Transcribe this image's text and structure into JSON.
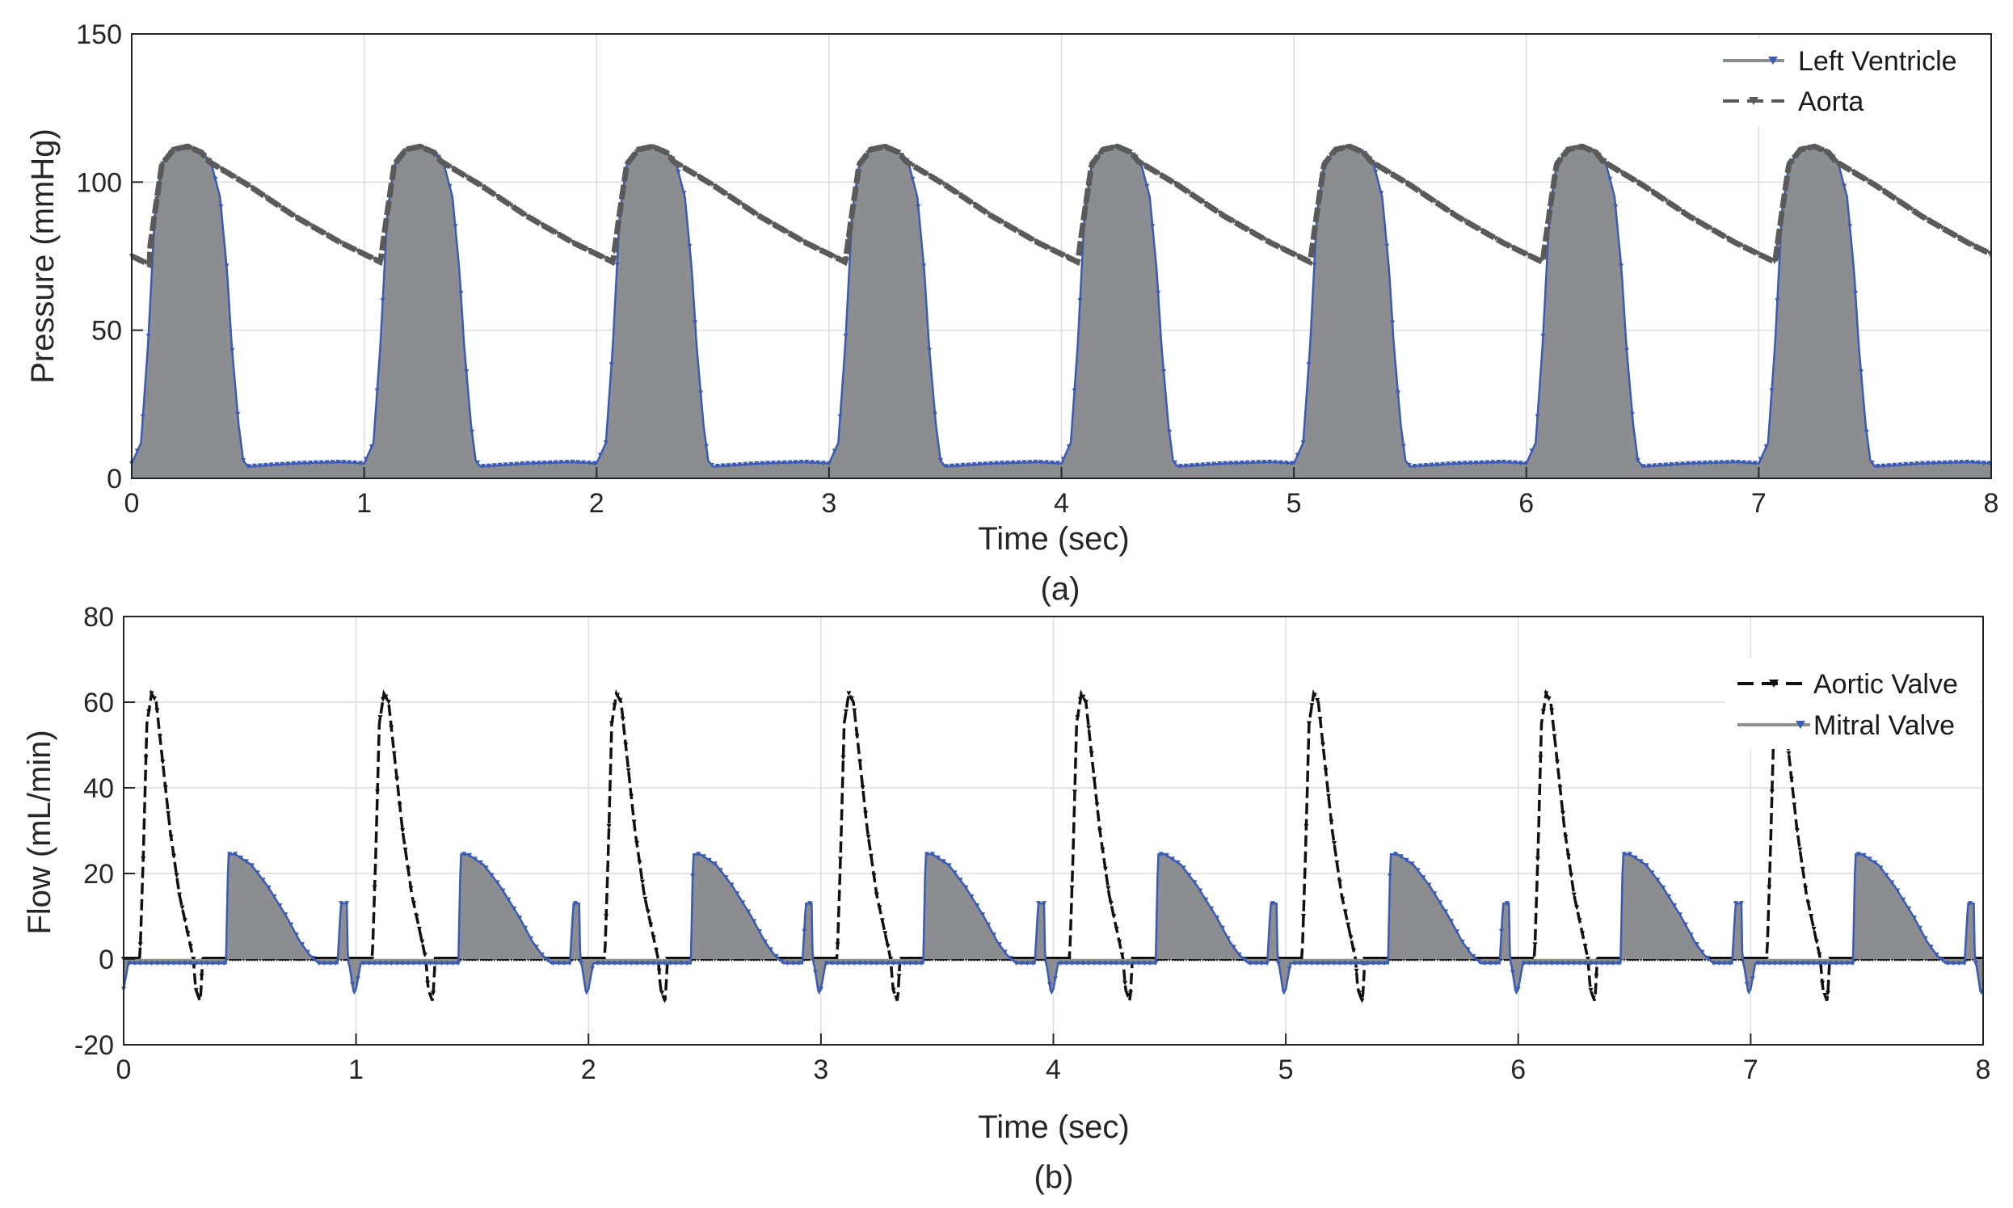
{
  "chart_data": [
    {
      "panel": "a",
      "type": "line",
      "caption": "(a)",
      "xlabel": "Time (sec)",
      "ylabel": "Pressure (mmHg)",
      "xlim": [
        0,
        8
      ],
      "ylim": [
        0,
        150
      ],
      "xticks": [
        "0",
        "1",
        "2",
        "3",
        "4",
        "5",
        "6",
        "7",
        "8"
      ],
      "yticks": [
        "0",
        "50",
        "100",
        "150"
      ],
      "grid": true,
      "legend_position": "top-right",
      "period_sec": 1.0,
      "series": [
        {
          "name": "Left Ventricle",
          "style": "filled-gray-solid-with-blue-markers",
          "color": "#8c8d91",
          "marker_color": "#3a5bb5",
          "cycle_points": [
            [
              0.0,
              5
            ],
            [
              0.04,
              12
            ],
            [
              0.07,
              45
            ],
            [
              0.1,
              90
            ],
            [
              0.13,
              106
            ],
            [
              0.18,
              111
            ],
            [
              0.24,
              112
            ],
            [
              0.3,
              110
            ],
            [
              0.34,
              107
            ],
            [
              0.38,
              95
            ],
            [
              0.41,
              70
            ],
            [
              0.43,
              45
            ],
            [
              0.46,
              18
            ],
            [
              0.48,
              6
            ],
            [
              0.5,
              4
            ],
            [
              0.7,
              5
            ],
            [
              0.9,
              5.5
            ],
            [
              1.0,
              5
            ]
          ]
        },
        {
          "name": "Aorta",
          "style": "dashed-dark-gray",
          "color": "#5a5a5a",
          "first_cycle_points": [
            [
              0.0,
              75
            ],
            [
              0.08,
              72
            ]
          ],
          "cycle_points": [
            [
              0.07,
              73
            ],
            [
              0.1,
              90
            ],
            [
              0.13,
              106
            ],
            [
              0.18,
              111
            ],
            [
              0.24,
              112
            ],
            [
              0.3,
              110
            ],
            [
              0.33,
              107
            ],
            [
              0.5,
              99
            ],
            [
              0.7,
              88.5
            ],
            [
              0.9,
              79.5
            ],
            [
              1.07,
              73
            ]
          ]
        }
      ]
    },
    {
      "panel": "b",
      "type": "line",
      "caption": "(b)",
      "xlabel": "Time (sec)",
      "ylabel": "Flow (mL/min)",
      "xlim": [
        0,
        8
      ],
      "ylim": [
        -20,
        80
      ],
      "xticks": [
        "0",
        "1",
        "2",
        "3",
        "4",
        "5",
        "6",
        "7",
        "8"
      ],
      "yticks": [
        "-20",
        "0",
        "20",
        "40",
        "60",
        "80"
      ],
      "grid": true,
      "legend_position": "right",
      "period_sec": 1.0,
      "series": [
        {
          "name": "Aortic Valve",
          "style": "dashed-black",
          "color": "#111111",
          "cycle_points": [
            [
              0.0,
              0
            ],
            [
              0.07,
              0
            ],
            [
              0.085,
              25
            ],
            [
              0.1,
              55
            ],
            [
              0.12,
              62
            ],
            [
              0.14,
              60
            ],
            [
              0.17,
              45
            ],
            [
              0.2,
              30
            ],
            [
              0.24,
              15
            ],
            [
              0.28,
              5
            ],
            [
              0.3,
              0
            ],
            [
              0.31,
              -7
            ],
            [
              0.33,
              -10
            ],
            [
              0.34,
              0
            ],
            [
              1.0,
              0
            ]
          ]
        },
        {
          "name": "Mitral Valve",
          "style": "filled-gray-solid-with-blue-markers",
          "color": "#8c8d91",
          "marker_color": "#3a5bb5",
          "cycle_points": [
            [
              0.0,
              -7
            ],
            [
              0.02,
              -1
            ],
            [
              0.44,
              -1
            ],
            [
              0.45,
              24.5
            ],
            [
              0.48,
              24.5
            ],
            [
              0.55,
              22
            ],
            [
              0.62,
              17
            ],
            [
              0.7,
              10
            ],
            [
              0.76,
              4
            ],
            [
              0.8,
              1
            ],
            [
              0.84,
              -1
            ],
            [
              0.92,
              -1
            ],
            [
              0.935,
              13
            ],
            [
              0.96,
              13
            ],
            [
              0.965,
              -1
            ],
            [
              0.97,
              -1
            ],
            [
              0.99,
              -8
            ],
            [
              1.0,
              -7
            ]
          ]
        }
      ]
    }
  ]
}
